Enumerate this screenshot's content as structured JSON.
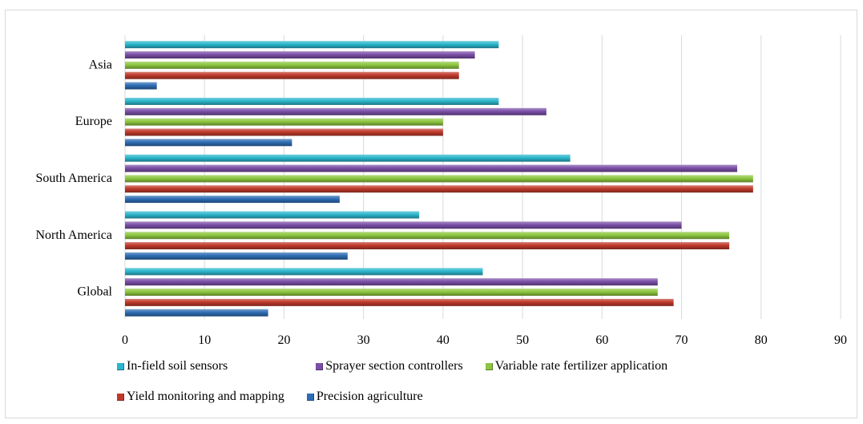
{
  "chart_data": {
    "type": "bar",
    "orientation": "horizontal",
    "title": "",
    "xlabel": "",
    "ylabel": "",
    "categories": [
      "Global",
      "North America",
      "South America",
      "Europe",
      "Asia"
    ],
    "xlim": [
      0,
      90
    ],
    "x_ticks": [
      "0",
      "10",
      "20",
      "30",
      "40",
      "50",
      "60",
      "70",
      "80",
      "90"
    ],
    "grid": "vertical",
    "legend_position": "bottom",
    "series": [
      {
        "name": "Precision agriculture",
        "color": "#2e6db4",
        "values": [
          18,
          28,
          27,
          21,
          4
        ]
      },
      {
        "name": "Yield monitoring and mapping",
        "color": "#c0392b",
        "values": [
          69,
          76,
          79,
          40,
          42
        ]
      },
      {
        "name": "Variable rate fertilizer application",
        "color": "#8dc63f",
        "values": [
          67,
          76,
          79,
          40,
          42
        ]
      },
      {
        "name": "Sprayer section controllers",
        "color": "#7b4fa8",
        "values": [
          67,
          70,
          77,
          53,
          44
        ]
      },
      {
        "name": "In-field soil sensors",
        "color": "#2bb6cc",
        "values": [
          45,
          37,
          56,
          47,
          47
        ]
      }
    ],
    "legend_rows": [
      [
        "In-field soil sensors",
        "Sprayer section controllers",
        "Variable rate fertilizer application"
      ],
      [
        "Yield monitoring and mapping",
        "Precision agriculture"
      ]
    ]
  }
}
